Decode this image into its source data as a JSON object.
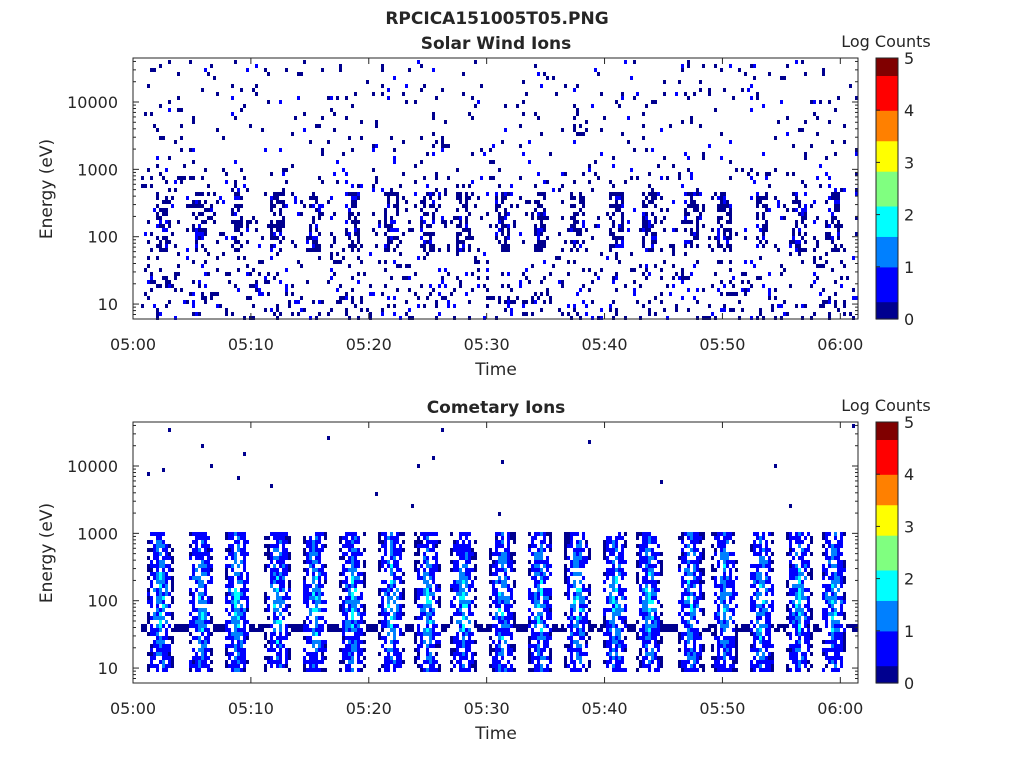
{
  "figure_title": "RPCICA151005T05.PNG",
  "colormap": [
    "#00008f",
    "#0000ff",
    "#0080ff",
    "#00ffff",
    "#80ff80",
    "#ffff00",
    "#ff8000",
    "#ff0000",
    "#800000"
  ],
  "chart_data": [
    {
      "type": "heatmap",
      "title": "Solar Wind Ions",
      "xlabel": "Time",
      "ylabel": "Energy (eV)",
      "x_ticks": [
        "05:00",
        "05:10",
        "05:20",
        "05:30",
        "05:40",
        "05:50",
        "06:00"
      ],
      "xlim_minutes": [
        0,
        61.5
      ],
      "y_scale": "log",
      "ylim": [
        6,
        45000
      ],
      "y_ticks": [
        10,
        100,
        1000,
        10000
      ],
      "y_tick_labels": [
        "10",
        "100",
        "1000",
        "10000"
      ],
      "colorbar": {
        "label": "Log Counts",
        "range": [
          0,
          5
        ],
        "ticks": [
          "0",
          "1",
          "2",
          "3",
          "4",
          "5"
        ]
      },
      "texture": "sparse",
      "bursts_minutes": [
        2.3,
        5.6,
        8.7,
        12.2,
        15.3,
        18.5,
        21.8,
        24.9,
        27.9,
        31.2,
        34.4,
        37.6,
        40.8,
        43.7,
        47.2,
        50.1,
        53.2,
        56.4,
        59.3
      ],
      "peak_log_counts": 0.4
    },
    {
      "type": "heatmap",
      "title": "Cometary Ions",
      "xlabel": "Time",
      "ylabel": "Energy (eV)",
      "x_ticks": [
        "05:00",
        "05:10",
        "05:20",
        "05:30",
        "05:40",
        "05:50",
        "06:00"
      ],
      "xlim_minutes": [
        0,
        61.5
      ],
      "y_scale": "log",
      "ylim": [
        6,
        45000
      ],
      "y_ticks": [
        10,
        100,
        1000,
        10000
      ],
      "y_tick_labels": [
        "10",
        "100",
        "1000",
        "10000"
      ],
      "colorbar": {
        "label": "Log Counts",
        "range": [
          0,
          5
        ],
        "ticks": [
          "0",
          "1",
          "2",
          "3",
          "4",
          "5"
        ]
      },
      "texture": "bursts",
      "bursts_minutes": [
        2.2,
        5.6,
        8.7,
        12.2,
        15.3,
        18.5,
        21.8,
        24.9,
        27.9,
        31.2,
        34.4,
        37.6,
        40.8,
        43.7,
        47.2,
        50.1,
        53.2,
        56.4,
        59.3
      ],
      "band_energy_eV": 40,
      "peak_log_counts": 1.9
    }
  ]
}
